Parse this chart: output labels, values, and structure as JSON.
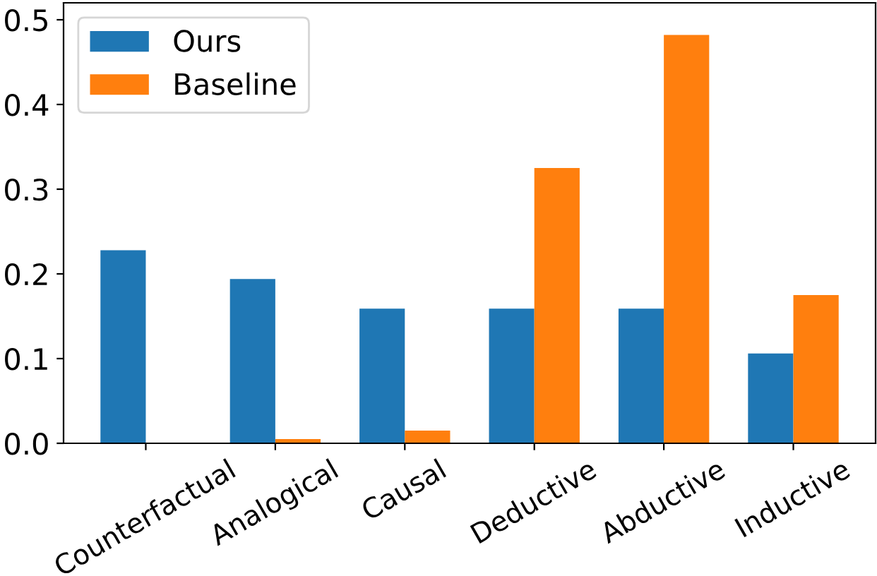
{
  "chart_data": {
    "type": "bar",
    "categories": [
      "Counterfactual",
      "Analogical",
      "Causal",
      "Deductive",
      "Abductive",
      "Inductive"
    ],
    "series": [
      {
        "name": "Ours",
        "color": "#1f77b4",
        "values": [
          0.228,
          0.194,
          0.159,
          0.159,
          0.159,
          0.106
        ]
      },
      {
        "name": "Baseline",
        "color": "#ff7f0e",
        "values": [
          0,
          0.005,
          0.015,
          0.325,
          0.482,
          0.175
        ]
      }
    ],
    "ylim": [
      0,
      0.52
    ],
    "yticks": [
      {
        "value": 0,
        "label": "0.0"
      },
      0.1,
      0.2,
      0.3,
      0.4,
      0.5
    ],
    "legend": "top left",
    "grid": false
  }
}
